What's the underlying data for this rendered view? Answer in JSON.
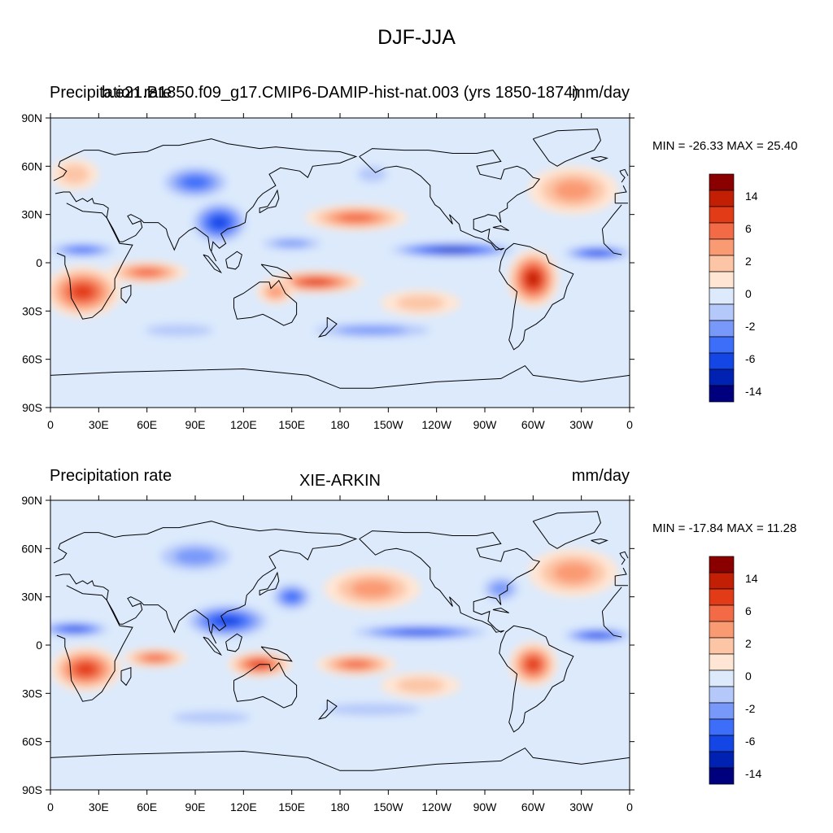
{
  "figure_title": "DJF-JJA",
  "palette": [
    "#00007F",
    "#0022B2",
    "#1446E6",
    "#3C6EFA",
    "#7898FA",
    "#B4C8FA",
    "#DCEAFC",
    "#FFE6D4",
    "#FCC5A6",
    "#FA9A73",
    "#F26B46",
    "#E23B17",
    "#C21F04",
    "#8A0000"
  ],
  "land_color": "#000000",
  "panels": [
    {
      "id": "top",
      "left_title": "Precipitation rate",
      "center_title": "b.e21.B1850.f09_g17.CMIP6-DAMIP-hist-nat.003 (yrs 1850-1874)",
      "right_title": "mm/day",
      "stats": "MIN = -26.33 MAX =  25.40",
      "colorbar_labels": [
        "14",
        "6",
        "2",
        "0",
        "-2",
        "-6",
        "-14"
      ],
      "lat_labels": [
        "90N",
        "60N",
        "30N",
        "0",
        "30S",
        "60S",
        "90S"
      ],
      "lon_labels": [
        "0",
        "30E",
        "60E",
        "90E",
        "120E",
        "150E",
        "180",
        "150W",
        "120W",
        "90W",
        "60W",
        "30W",
        "0"
      ],
      "blobs": [
        {
          "lon": 20,
          "lat": -18,
          "rx": 24,
          "ry": 16,
          "level": 11
        },
        {
          "lon": 60,
          "lat": -6,
          "rx": 25,
          "ry": 7,
          "level": 10
        },
        {
          "lon": 165,
          "lat": -12,
          "rx": 30,
          "ry": 7,
          "level": 11
        },
        {
          "lon": 140,
          "lat": -18,
          "rx": 12,
          "ry": 8,
          "level": 9
        },
        {
          "lon": 300,
          "lat": -10,
          "rx": 16,
          "ry": 18,
          "level": 12
        },
        {
          "lon": 190,
          "lat": 28,
          "rx": 32,
          "ry": 8,
          "level": 10
        },
        {
          "lon": 325,
          "lat": 45,
          "rx": 28,
          "ry": 15,
          "level": 9
        },
        {
          "lon": 15,
          "lat": 55,
          "rx": 15,
          "ry": 10,
          "level": 8
        },
        {
          "lon": 230,
          "lat": -25,
          "rx": 25,
          "ry": 8,
          "level": 8
        },
        {
          "lon": 20,
          "lat": 8,
          "rx": 25,
          "ry": 5,
          "level": 3
        },
        {
          "lon": 105,
          "lat": 25,
          "rx": 20,
          "ry": 15,
          "level": 2
        },
        {
          "lon": 90,
          "lat": 50,
          "rx": 25,
          "ry": 12,
          "level": 3
        },
        {
          "lon": 250,
          "lat": 8,
          "rx": 45,
          "ry": 5,
          "level": 1
        },
        {
          "lon": 340,
          "lat": 6,
          "rx": 25,
          "ry": 5,
          "level": 2
        },
        {
          "lon": 150,
          "lat": 12,
          "rx": 25,
          "ry": 5,
          "level": 4
        },
        {
          "lon": 200,
          "lat": -42,
          "rx": 50,
          "ry": 6,
          "level": 4
        },
        {
          "lon": 80,
          "lat": -42,
          "rx": 35,
          "ry": 6,
          "level": 5
        },
        {
          "lon": 200,
          "lat": 55,
          "rx": 15,
          "ry": 8,
          "level": 5
        }
      ]
    },
    {
      "id": "bottom",
      "left_title": "Precipitation rate",
      "center_title": "XIE-ARKIN",
      "right_title": "mm/day",
      "stats": "MIN = -17.84 MAX =  11.28",
      "colorbar_labels": [
        "14",
        "6",
        "2",
        "0",
        "-2",
        "-6",
        "-14"
      ],
      "lat_labels": [
        "90N",
        "60N",
        "30N",
        "0",
        "30S",
        "60S",
        "90S"
      ],
      "lon_labels": [
        "0",
        "30E",
        "60E",
        "90E",
        "120E",
        "150E",
        "180",
        "150W",
        "120W",
        "90W",
        "60W",
        "30W",
        "0"
      ],
      "blobs": [
        {
          "lon": 22,
          "lat": -15,
          "rx": 22,
          "ry": 14,
          "level": 11
        },
        {
          "lon": 65,
          "lat": -8,
          "rx": 20,
          "ry": 6,
          "level": 10
        },
        {
          "lon": 130,
          "lat": -12,
          "rx": 20,
          "ry": 8,
          "level": 11
        },
        {
          "lon": 190,
          "lat": -12,
          "rx": 25,
          "ry": 7,
          "level": 10
        },
        {
          "lon": 300,
          "lat": -12,
          "rx": 15,
          "ry": 14,
          "level": 11
        },
        {
          "lon": 200,
          "lat": 35,
          "rx": 30,
          "ry": 13,
          "level": 9
        },
        {
          "lon": 325,
          "lat": 45,
          "rx": 28,
          "ry": 15,
          "level": 9
        },
        {
          "lon": 230,
          "lat": -25,
          "rx": 25,
          "ry": 8,
          "level": 8
        },
        {
          "lon": 15,
          "lat": 10,
          "rx": 25,
          "ry": 5,
          "level": 2
        },
        {
          "lon": 110,
          "lat": 15,
          "rx": 30,
          "ry": 12,
          "level": 2
        },
        {
          "lon": 150,
          "lat": 30,
          "rx": 15,
          "ry": 10,
          "level": 3
        },
        {
          "lon": 230,
          "lat": 8,
          "rx": 50,
          "ry": 5,
          "level": 2
        },
        {
          "lon": 340,
          "lat": 6,
          "rx": 25,
          "ry": 5,
          "level": 2
        },
        {
          "lon": 90,
          "lat": 55,
          "rx": 30,
          "ry": 12,
          "level": 4
        },
        {
          "lon": 100,
          "lat": -45,
          "rx": 40,
          "ry": 6,
          "level": 5
        },
        {
          "lon": 200,
          "lat": -40,
          "rx": 50,
          "ry": 6,
          "level": 5
        },
        {
          "lon": 280,
          "lat": 35,
          "rx": 15,
          "ry": 10,
          "level": 4
        }
      ]
    }
  ]
}
